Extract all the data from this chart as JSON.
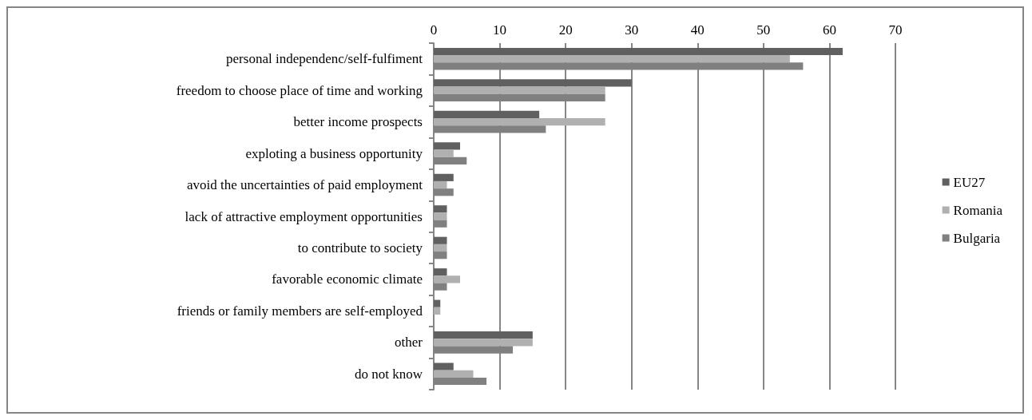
{
  "chart_data": {
    "type": "bar",
    "orientation": "horizontal",
    "categories": [
      "personal independenc/self-fulfiment",
      "freedom to choose place of time and working",
      "better income prospects",
      "exploting a business opportunity",
      "avoid the uncertainties of paid employment",
      "lack of attractive employment opportunities",
      "to contribute to society",
      "favorable economic climate",
      "friends or family members are self-employed",
      "other",
      "do not know"
    ],
    "series": [
      {
        "name": "EU27",
        "color": "#606060",
        "values": [
          62,
          30,
          16,
          4,
          3,
          2,
          2,
          2,
          1,
          15,
          3
        ]
      },
      {
        "name": "Romania",
        "color": "#b0b0b0",
        "values": [
          54,
          26,
          26,
          3,
          2,
          2,
          2,
          4,
          1,
          15,
          6
        ]
      },
      {
        "name": "Bulgaria",
        "color": "#808080",
        "values": [
          56,
          26,
          17,
          5,
          3,
          2,
          2,
          2,
          0,
          12,
          8
        ]
      }
    ],
    "xlim": [
      0,
      70
    ],
    "xticks": [
      0,
      10,
      20,
      30,
      40,
      50,
      60,
      70
    ],
    "grid": "x",
    "legend": "right"
  }
}
